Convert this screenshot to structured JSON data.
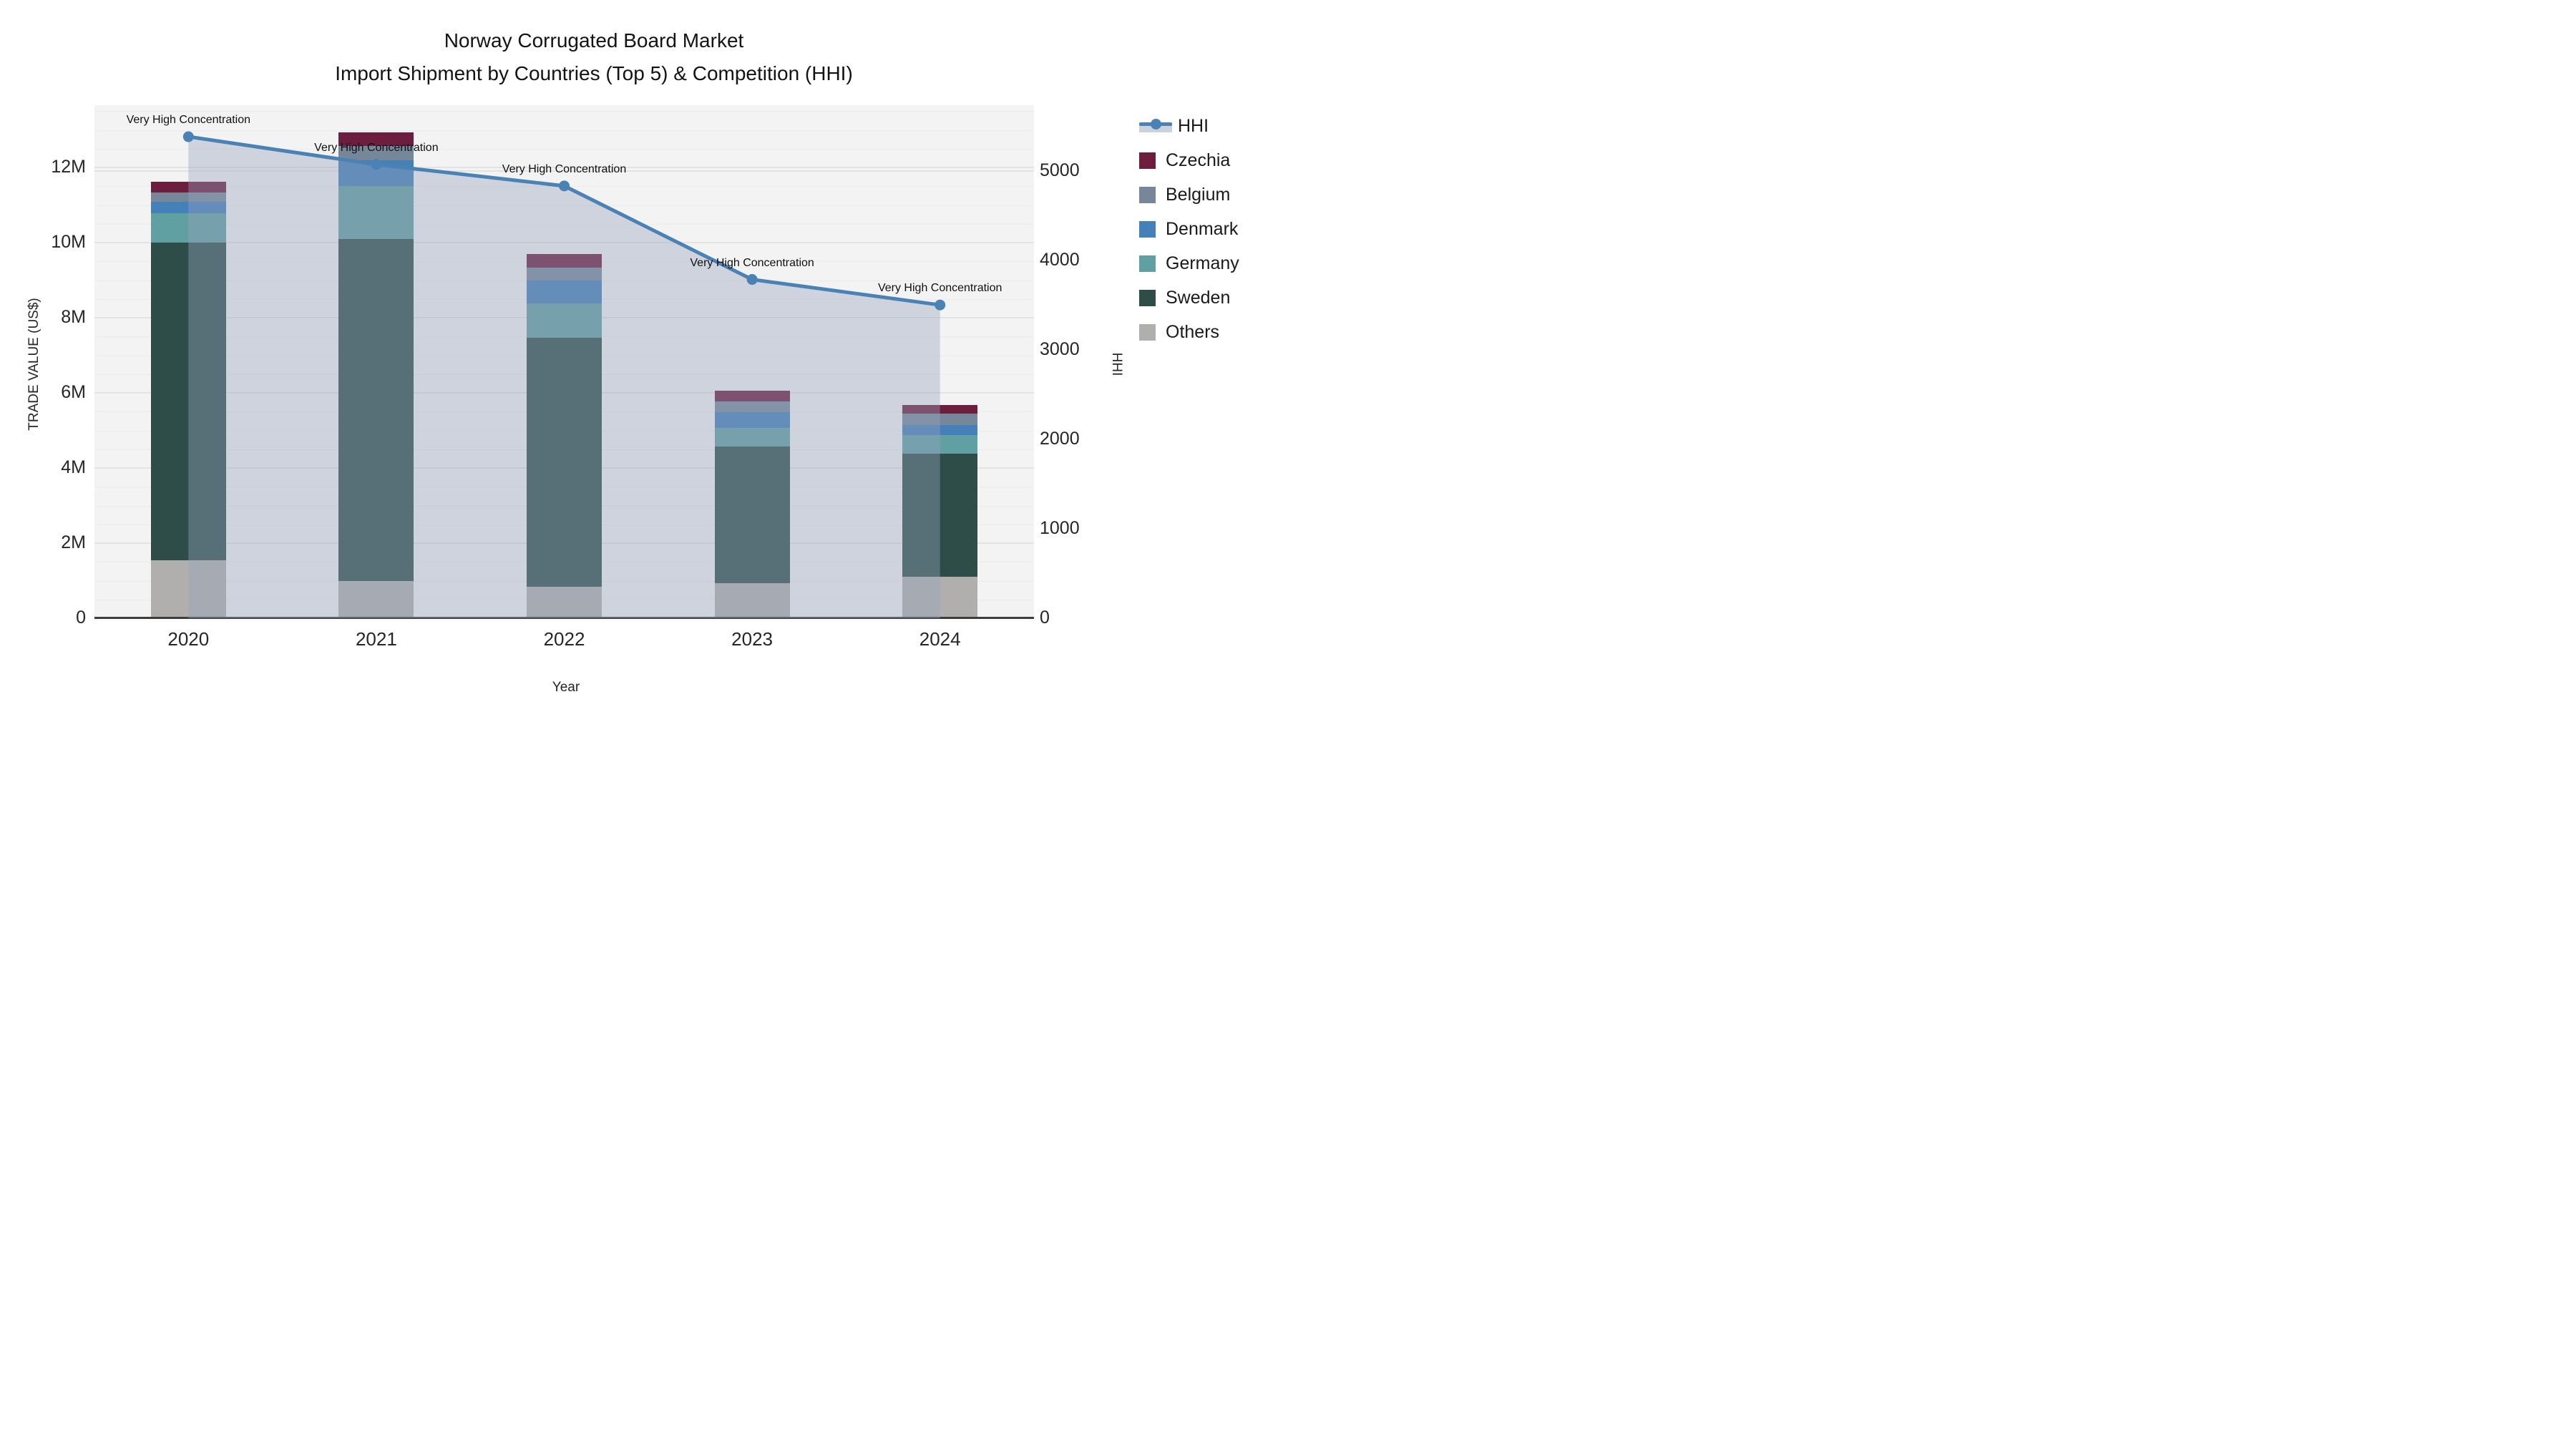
{
  "title": {
    "line1": "Norway Corrugated Board Market",
    "line2": "Import Shipment by Countries (Top 5) & Competition (HHI)"
  },
  "axes": {
    "x": {
      "title": "Year",
      "ticks": [
        "2020",
        "2021",
        "2022",
        "2023",
        "2024"
      ]
    },
    "y_left": {
      "title": "TRADE VALUE (US$)",
      "ticks": [
        "0",
        "2M",
        "4M",
        "6M",
        "8M",
        "10M",
        "12M"
      ],
      "tick_values_m": [
        0,
        2,
        4,
        6,
        8,
        10,
        12
      ],
      "axis_max_m": 13.66
    },
    "y_right": {
      "title": "HHI",
      "ticks": [
        "0",
        "1000",
        "2000",
        "3000",
        "4000",
        "5000"
      ],
      "tick_values": [
        0,
        1000,
        2000,
        3000,
        4000,
        5000
      ],
      "axis_max": 5732
    }
  },
  "legend": [
    {
      "id": "hhi",
      "label": "HHI",
      "type": "line",
      "color": "#4a82b5"
    },
    {
      "id": "czechia",
      "label": "Czechia",
      "type": "swatch",
      "color": "#6d1d3e"
    },
    {
      "id": "belgium",
      "label": "Belgium",
      "type": "swatch",
      "color": "#76879a"
    },
    {
      "id": "denmark",
      "label": "Denmark",
      "type": "swatch",
      "color": "#4381b8"
    },
    {
      "id": "germany",
      "label": "Germany",
      "type": "swatch",
      "color": "#61a0a2"
    },
    {
      "id": "sweden",
      "label": "Sweden",
      "type": "swatch",
      "color": "#2e4d49"
    },
    {
      "id": "others",
      "label": "Others",
      "type": "swatch",
      "color": "#b1afae"
    }
  ],
  "chart_data": {
    "type": "bar",
    "subtype": "stacked-bars-with-line",
    "unit": "million US$",
    "categories": [
      "2020",
      "2021",
      "2022",
      "2023",
      "2024"
    ],
    "stack_order_bottom_to_top": [
      "Others",
      "Sweden",
      "Germany",
      "Denmark",
      "Belgium",
      "Czechia"
    ],
    "series": [
      {
        "name": "Others",
        "color": "#b1afae",
        "values_m": [
          1.55,
          1.0,
          0.83,
          0.94,
          1.11
        ]
      },
      {
        "name": "Sweden",
        "color": "#2e4d49",
        "values_m": [
          8.45,
          9.1,
          6.64,
          3.64,
          3.28
        ]
      },
      {
        "name": "Germany",
        "color": "#61a0a2",
        "values_m": [
          0.78,
          1.4,
          0.91,
          0.48,
          0.48
        ]
      },
      {
        "name": "Denmark",
        "color": "#4381b8",
        "values_m": [
          0.3,
          0.7,
          0.62,
          0.42,
          0.27
        ]
      },
      {
        "name": "Belgium",
        "color": "#76879a",
        "values_m": [
          0.26,
          0.37,
          0.33,
          0.3,
          0.3
        ]
      },
      {
        "name": "Czechia",
        "color": "#6d1d3e",
        "values_m": [
          0.29,
          0.36,
          0.37,
          0.27,
          0.23
        ]
      }
    ],
    "bar_totals_m": [
      11.63,
      12.93,
      9.7,
      6.05,
      5.67
    ],
    "line_series": {
      "name": "HHI",
      "color": "#4a82b5",
      "area_fill": "rgba(151,163,188,0.40)",
      "values": [
        5380,
        5070,
        4830,
        3785,
        3500
      ],
      "axis": "right"
    },
    "annotations": [
      {
        "x": "2020",
        "text": "Very High Concentration"
      },
      {
        "x": "2021",
        "text": "Very High Concentration"
      },
      {
        "x": "2022",
        "text": "Very High Concentration"
      },
      {
        "x": "2023",
        "text": "Very High Concentration"
      },
      {
        "x": "2024",
        "text": "Very High Concentration"
      }
    ],
    "title": "Norway Corrugated Board Market — Import Shipment by Countries (Top 5) & Competition (HHI)",
    "xlabel": "Year",
    "ylabel_left": "TRADE VALUE (US$)",
    "ylabel_right": "HHI",
    "grid": "horizontal, major every 2M with 0.5M minors",
    "legend_position": "right"
  },
  "colors": {
    "page_bg": "#ffffff",
    "plot_bg": "#f3f3f3",
    "gridline_major": "#e3e3e3",
    "gridline_minor": "#ececec",
    "axis_line": "#3d3d3d",
    "text": "#262626"
  }
}
